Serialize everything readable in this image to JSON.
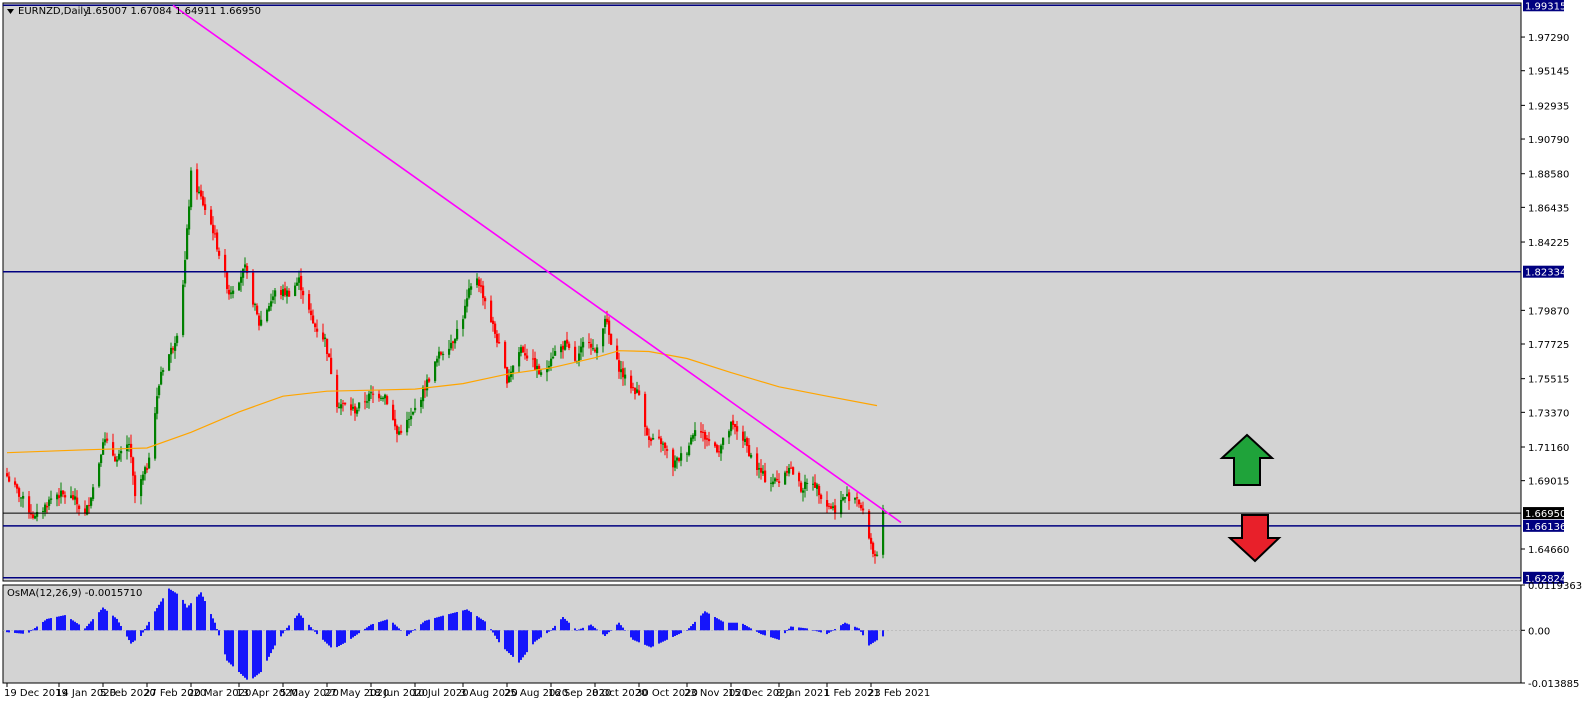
{
  "header": {
    "symbol": "EURNZD,Daily",
    "ohlc": "1.65007 1.67084 1.64911 1.66950"
  },
  "osma": {
    "label": "OsMA(12,26,9) -0.0015710",
    "ticks": [
      {
        "value": 0.0119363,
        "label": "0.0119363"
      },
      {
        "value": 0.0,
        "label": "0.00"
      },
      {
        "value": -0.0138853,
        "label": "-0.013885"
      }
    ],
    "ylim": [
      -0.0138853,
      0.0119363
    ],
    "color": "#0000ff"
  },
  "colors": {
    "bull": "#008000",
    "bear": "#ff0000",
    "ma": "#ffa500",
    "trendline": "#ff00ff",
    "hline": "#000080",
    "plot_bg": "#d3d3d3",
    "up_arrow": "#1fa33a",
    "down_arrow": "#e8202a"
  },
  "chart_data": {
    "type": "candlestick",
    "ylim": [
      1.6262,
      1.9946
    ],
    "y_ticks": [
      "1.97290",
      "1.95145",
      "1.92935",
      "1.90790",
      "1.88580",
      "1.86435",
      "1.84225",
      "1.79870",
      "1.77725",
      "1.75515",
      "1.73370",
      "1.71160",
      "1.69015",
      "1.64660"
    ],
    "x_labels": [
      "19 Dec 2019",
      "14 Jan 2020",
      "5 Feb 2020",
      "27 Feb 2020",
      "20 Mar 2020",
      "13 Apr 2020",
      "5 May 2020",
      "27 May 2020",
      "18 Jun 2020",
      "10 Jul 2020",
      "3 Aug 2020",
      "25 Aug 2020",
      "16 Sep 2020",
      "8 Oct 2020",
      "30 Oct 2020",
      "23 Nov 2020",
      "15 Dec 2020",
      "8 Jan 2021",
      "1 Feb 2021",
      "23 Feb 2021"
    ],
    "hlines": [
      {
        "price": 1.99315,
        "label": "1.99315",
        "style": "navy"
      },
      {
        "price": 1.82334,
        "label": "1.82334",
        "style": "navy"
      },
      {
        "price": 1.6695,
        "label": "1.66950",
        "style": "black"
      },
      {
        "price": 1.66136,
        "label": "1.66136",
        "style": "navy"
      },
      {
        "price": 1.62824,
        "label": "1.62824",
        "style": "navy"
      }
    ],
    "trendline": {
      "from": [
        "11 Mar 2020",
        1.9931
      ],
      "to": [
        "10 Mar 2021",
        1.6635
      ]
    },
    "ma_anchors": [
      [
        "19 Dec 2019",
        1.708
      ],
      [
        "27 Jan 2020",
        1.7098
      ],
      [
        "27 Feb 2020",
        1.711
      ],
      [
        "20 Mar 2020",
        1.721
      ],
      [
        "13 Apr 2020",
        1.734
      ],
      [
        "5 May 2020",
        1.744
      ],
      [
        "27 May 2020",
        1.7472
      ],
      [
        "18 Jun 2020",
        1.7478
      ],
      [
        "10 Jul 2020",
        1.7485
      ],
      [
        "3 Aug 2020",
        1.752
      ],
      [
        "25 Aug 2020",
        1.758
      ],
      [
        "16 Sep 2020",
        1.762
      ],
      [
        "8 Oct 2020",
        1.7685
      ],
      [
        "20 Oct 2020",
        1.773
      ],
      [
        "4 Nov 2020",
        1.7725
      ],
      [
        "23 Nov 2020",
        1.768
      ],
      [
        "15 Dec 2020",
        1.759
      ],
      [
        "8 Jan 2021",
        1.75
      ],
      [
        "1 Feb 2021",
        1.744
      ],
      [
        "26 Feb 2021",
        1.738
      ]
    ],
    "price_anchors": [
      [
        "19 Dec 2019",
        1.693
      ],
      [
        "2 Jan 2020",
        1.666
      ],
      [
        "12 Jan 2020",
        1.682
      ],
      [
        "21 Jan 2020",
        1.679
      ],
      [
        "27 Jan 2020",
        1.668
      ],
      [
        "2 Feb 2020",
        1.695
      ],
      [
        "5 Feb 2020",
        1.717
      ],
      [
        "12 Feb 2020",
        1.703
      ],
      [
        "18 Feb 2020",
        1.714
      ],
      [
        "21 Feb 2020",
        1.68
      ],
      [
        "27 Feb 2020",
        1.699
      ],
      [
        "5 Mar 2020",
        1.76
      ],
      [
        "11 Mar 2020",
        1.776
      ],
      [
        "14 Mar 2020",
        1.79
      ],
      [
        "17 Mar 2020",
        1.83
      ],
      [
        "20 Mar 2020",
        1.885
      ],
      [
        "25 Mar 2020",
        1.87
      ],
      [
        "31 Mar 2020",
        1.85
      ],
      [
        "8 Apr 2020",
        1.81
      ],
      [
        "16 Apr 2020",
        1.825
      ],
      [
        "23 Apr 2020",
        1.79
      ],
      [
        "1 May 2020",
        1.81
      ],
      [
        "8 May 2020",
        1.81
      ],
      [
        "13 May 2020",
        1.818
      ],
      [
        "20 May 2020",
        1.79
      ],
      [
        "26 May 2020",
        1.78
      ],
      [
        "1 Jun 2020",
        1.74
      ],
      [
        "10 Jun 2020",
        1.735
      ],
      [
        "18 Jun 2020",
        1.745
      ],
      [
        "25 Jun 2020",
        1.745
      ],
      [
        "1 Jul 2020",
        1.72
      ],
      [
        "8 Jul 2020",
        1.73
      ],
      [
        "15 Jul 2020",
        1.75
      ],
      [
        "22 Jul 2020",
        1.77
      ],
      [
        "29 Jul 2020",
        1.78
      ],
      [
        "3 Aug 2020",
        1.795
      ],
      [
        "6 Aug 2020",
        1.81
      ],
      [
        "10 Aug 2020",
        1.82
      ],
      [
        "14 Aug 2020",
        1.805
      ],
      [
        "20 Aug 2020",
        1.78
      ],
      [
        "25 Aug 2020",
        1.755
      ],
      [
        "1 Sep 2020",
        1.775
      ],
      [
        "7 Sep 2020",
        1.765
      ],
      [
        "12 Sep 2020",
        1.755
      ],
      [
        "16 Sep 2020",
        1.77
      ],
      [
        "23 Sep 2020",
        1.777
      ],
      [
        "29 Sep 2020",
        1.765
      ],
      [
        "4 Oct 2020",
        1.785
      ],
      [
        "8 Oct 2020",
        1.77
      ],
      [
        "13 Oct 2020",
        1.795
      ],
      [
        "17 Oct 2020",
        1.77
      ],
      [
        "23 Oct 2020",
        1.755
      ],
      [
        "30 Oct 2020",
        1.745
      ],
      [
        "4 Nov 2020",
        1.715
      ],
      [
        "10 Nov 2020",
        1.715
      ],
      [
        "16 Nov 2020",
        1.7
      ],
      [
        "23 Nov 2020",
        1.71
      ],
      [
        "27 Nov 2020",
        1.725
      ],
      [
        "4 Dec 2020",
        1.715
      ],
      [
        "9 Dec 2020",
        1.71
      ],
      [
        "15 Dec 2020",
        1.725
      ],
      [
        "20 Dec 2020",
        1.72
      ],
      [
        "27 Dec 2020",
        1.7
      ],
      [
        "2 Jan 2021",
        1.69
      ],
      [
        "8 Jan 2021",
        1.69
      ],
      [
        "13 Jan 2021",
        1.7
      ],
      [
        "19 Jan 2021",
        1.685
      ],
      [
        "25 Jan 2021",
        1.69
      ],
      [
        "1 Feb 2021",
        1.675
      ],
      [
        "5 Feb 2021",
        1.672
      ],
      [
        "10 Feb 2021",
        1.68
      ],
      [
        "16 Feb 2021",
        1.68
      ],
      [
        "20 Feb 2021",
        1.665
      ],
      [
        "24 Feb 2021",
        1.645
      ],
      [
        "26 Feb 2021",
        1.64
      ],
      [
        "1 Mar 2021",
        1.6695
      ]
    ],
    "osma_anchors": [
      [
        "19 Dec 2019",
        -0.0005
      ],
      [
        "29 Dec 2019",
        -0.001
      ],
      [
        "8 Jan 2020",
        0.003
      ],
      [
        "17 Jan 2020",
        0.004
      ],
      [
        "27 Jan 2020",
        0.0005
      ],
      [
        "5 Feb 2020",
        0.006
      ],
      [
        "12 Feb 2020",
        0.003
      ],
      [
        "19 Feb 2020",
        -0.0035
      ],
      [
        "24 Feb 2020",
        -0.0015
      ],
      [
        "2 Mar 2020",
        0.005
      ],
      [
        "9 Mar 2020",
        0.011
      ],
      [
        "15 Mar 2020",
        0.009
      ],
      [
        "18 Mar 2020",
        0.006
      ],
      [
        "25 Mar 2020",
        0.01
      ],
      [
        "1 Apr 2020",
        0.002
      ],
      [
        "7 Apr 2020",
        -0.008
      ],
      [
        "18 Apr 2020",
        -0.0135
      ],
      [
        "24 Apr 2020",
        -0.011
      ],
      [
        "1 May 2020",
        -0.004
      ],
      [
        "6 May 2020",
        0.0
      ],
      [
        "13 May 2020",
        0.0045
      ],
      [
        "22 May 2020",
        -0.001
      ],
      [
        "30 May 2020",
        -0.005
      ],
      [
        "6 Jun 2020",
        -0.003
      ],
      [
        "18 Jun 2020",
        0.0015
      ],
      [
        "27 Jun 2020",
        0.003
      ],
      [
        "6 Jul 2020",
        -0.0015
      ],
      [
        "15 Jul 2020",
        0.0025
      ],
      [
        "25 Jul 2020",
        0.004
      ],
      [
        "5 Aug 2020",
        0.0055
      ],
      [
        "15 Aug 2020",
        0.002
      ],
      [
        "22 Aug 2020",
        -0.004
      ],
      [
        "31 Aug 2020",
        -0.0085
      ],
      [
        "8 Sep 2020",
        -0.003
      ],
      [
        "16 Sep 2020",
        0.0
      ],
      [
        "22 Sep 2020",
        0.0035
      ],
      [
        "29 Sep 2020",
        0.0
      ],
      [
        "6 Oct 2020",
        0.0015
      ],
      [
        "13 Oct 2020",
        -0.0015
      ],
      [
        "20 Oct 2020",
        0.002
      ],
      [
        "27 Oct 2020",
        -0.0025
      ],
      [
        "5 Nov 2020",
        -0.0045
      ],
      [
        "15 Nov 2020",
        -0.002
      ],
      [
        "23 Nov 2020",
        0.0
      ],
      [
        "2 Dec 2020",
        0.005
      ],
      [
        "12 Dec 2020",
        0.002
      ],
      [
        "20 Dec 2020",
        0.002
      ],
      [
        "30 Dec 2020",
        -0.001
      ],
      [
        "8 Jan 2021",
        -0.0025
      ],
      [
        "14 Jan 2021",
        0.001
      ],
      [
        "22 Jan 2021",
        0.0005
      ],
      [
        "1 Feb 2021",
        -0.001
      ],
      [
        "10 Feb 2021",
        0.002
      ],
      [
        "17 Feb 2021",
        0.0005
      ],
      [
        "22 Feb 2021",
        -0.004
      ],
      [
        "1 Mar 2021",
        -0.0016
      ]
    ]
  }
}
